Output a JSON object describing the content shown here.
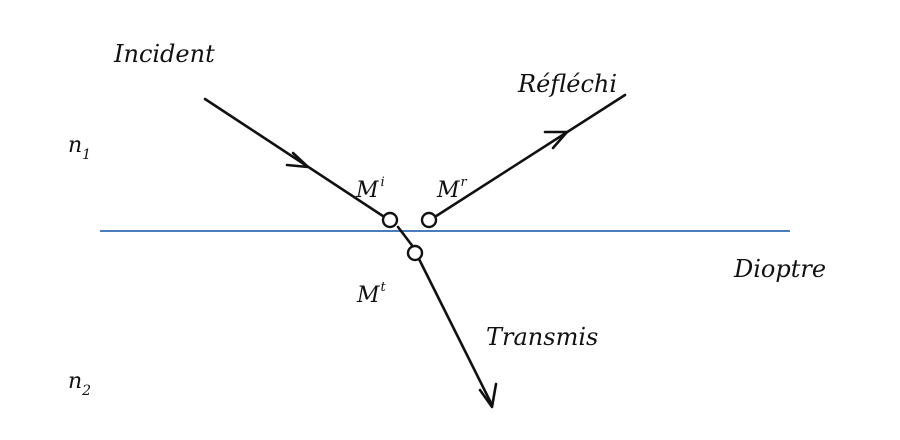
{
  "labels": {
    "incident": "Incident",
    "reflected": "Réfléchi",
    "transmitted": "Transmis",
    "interface": "Dioptre",
    "medium1": {
      "base": "n",
      "sub": "1"
    },
    "medium2": {
      "base": "n",
      "sub": "2"
    },
    "point_incident": {
      "base": "M",
      "sup": "i"
    },
    "point_reflected": {
      "base": "M",
      "sup": "r"
    },
    "point_transmitted": {
      "base": "M",
      "sup": "t"
    }
  },
  "colors": {
    "interface_line": "#4a7ebb",
    "rays": "#111111",
    "text": "#111111"
  }
}
